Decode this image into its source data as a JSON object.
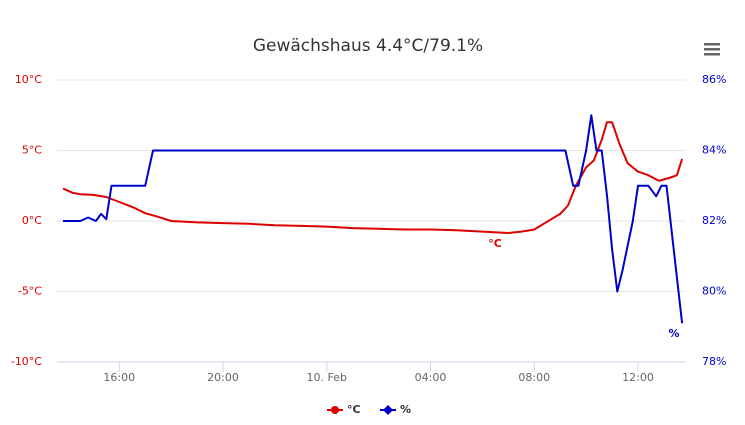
{
  "chart_data": {
    "type": "line",
    "title": "Gewächshaus 4.4°C/79.1%",
    "xlim": [
      13.6,
      37.85
    ],
    "xticks": [
      {
        "value": 16,
        "label": "16:00"
      },
      {
        "value": 20,
        "label": "20:00"
      },
      {
        "value": 24,
        "label": "10. Feb"
      },
      {
        "value": 28,
        "label": "04:00"
      },
      {
        "value": 32,
        "label": "08:00"
      },
      {
        "value": 36,
        "label": "12:00"
      }
    ],
    "ylim": [
      -10,
      10
    ],
    "yticks": [
      {
        "value": -10,
        "label": "-10°C"
      },
      {
        "value": -5,
        "label": "-5°C"
      },
      {
        "value": 0,
        "label": "0°C"
      },
      {
        "value": 5,
        "label": "5°C"
      },
      {
        "value": 10,
        "label": "10°C"
      }
    ],
    "y2lim": [
      78,
      86
    ],
    "y2ticks": [
      {
        "value": 78,
        "label": "78%"
      },
      {
        "value": 80,
        "label": "80%"
      },
      {
        "value": 82,
        "label": "82%"
      },
      {
        "value": 84,
        "label": "84%"
      },
      {
        "value": 86,
        "label": "86%"
      }
    ],
    "grid": true,
    "legend": "bottom",
    "series": [
      {
        "name": "°C",
        "color": "#dd0000",
        "axis": "y",
        "x": [
          13.83,
          14.2,
          14.5,
          15.0,
          15.5,
          16.0,
          16.5,
          17.0,
          17.5,
          18.0,
          19.0,
          20.0,
          21.0,
          22.0,
          23.0,
          24.0,
          25.0,
          26.0,
          27.0,
          28.0,
          29.0,
          30.0,
          31.0,
          31.5,
          32.0,
          32.5,
          33.0,
          33.3,
          33.6,
          34.0,
          34.3,
          34.6,
          34.8,
          35.0,
          35.3,
          35.6,
          36.0,
          36.4,
          36.8,
          37.2,
          37.5,
          37.7
        ],
        "values": [
          2.3,
          2.0,
          1.9,
          1.85,
          1.7,
          1.35,
          1.0,
          0.55,
          0.3,
          0.0,
          -0.1,
          -0.15,
          -0.2,
          -0.3,
          -0.35,
          -0.4,
          -0.5,
          -0.55,
          -0.6,
          -0.6,
          -0.65,
          -0.75,
          -0.85,
          -0.75,
          -0.6,
          -0.05,
          0.5,
          1.1,
          2.5,
          3.8,
          4.3,
          5.75,
          7.0,
          7.0,
          5.4,
          4.1,
          3.5,
          3.25,
          2.85,
          3.05,
          3.25,
          4.4
        ]
      },
      {
        "name": "%",
        "color": "#0000cc",
        "axis": "y2",
        "x": [
          13.83,
          14.5,
          14.8,
          15.1,
          15.3,
          15.5,
          15.7,
          16.0,
          17.0,
          17.3,
          20.0,
          24.0,
          28.0,
          32.0,
          33.2,
          33.5,
          33.7,
          34.0,
          34.2,
          34.4,
          34.6,
          34.8,
          35.0,
          35.2,
          35.4,
          35.8,
          36.0,
          36.4,
          36.7,
          36.9,
          37.1,
          37.7
        ],
        "values": [
          82.0,
          82.0,
          82.1,
          82.0,
          82.2,
          82.05,
          83.0,
          83.0,
          83.0,
          84.0,
          84.0,
          84.0,
          84.0,
          84.0,
          84.0,
          83.0,
          83.0,
          84.0,
          85.0,
          84.0,
          84.0,
          82.75,
          81.2,
          80.0,
          80.6,
          82.0,
          83.0,
          83.0,
          82.7,
          83.0,
          83.0,
          79.1
        ]
      }
    ]
  }
}
